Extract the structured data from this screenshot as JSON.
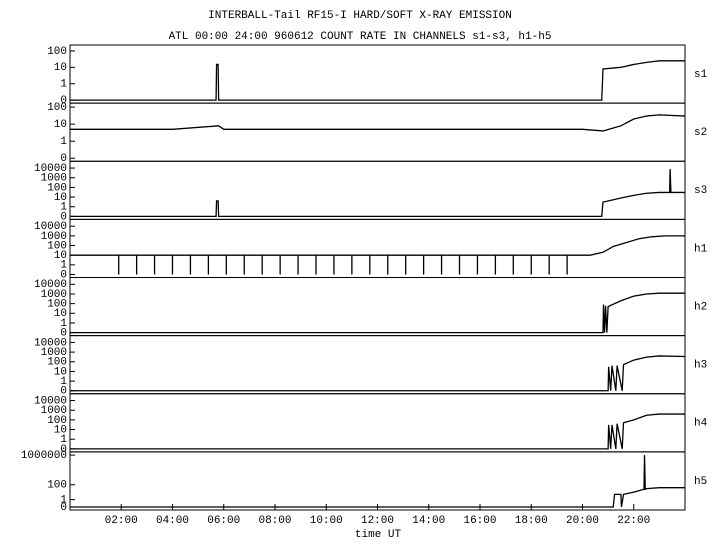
{
  "chart_data": {
    "type": "line",
    "title": "INTERBALL-Tail RF15-I HARD/SOFT X-RAY EMISSION",
    "subtitle": "ATL 00:00 24:00 960612  COUNT RATE IN CHANNELS s1-s3, h1-h5",
    "xlabel": "time UT",
    "xlim": [
      0,
      24
    ],
    "xticks": [
      {
        "value": 2,
        "label": "02:00"
      },
      {
        "value": 4,
        "label": "04:00"
      },
      {
        "value": 6,
        "label": "06:00"
      },
      {
        "value": 8,
        "label": "08:00"
      },
      {
        "value": 10,
        "label": "10:00"
      },
      {
        "value": 12,
        "label": "12:00"
      },
      {
        "value": 14,
        "label": "14:00"
      },
      {
        "value": 16,
        "label": "16:00"
      },
      {
        "value": 18,
        "label": "18:00"
      },
      {
        "value": 20,
        "label": "20:00"
      },
      {
        "value": 22,
        "label": "22:00"
      }
    ],
    "yscale": "symlog",
    "linthresh": 1,
    "color": "#000000",
    "series": [
      {
        "name": "s1",
        "ylim": [
          0,
          200
        ],
        "yticks": [
          0,
          1,
          10,
          100
        ],
        "x": [
          0,
          5.7,
          5.72,
          5.78,
          5.8,
          20.75,
          20.8,
          21.5,
          22,
          22.5,
          23,
          24
        ],
        "values": [
          0,
          0,
          15,
          15,
          0,
          0,
          8,
          10,
          15,
          20,
          25,
          25
        ]
      },
      {
        "name": "s2",
        "ylim": [
          0,
          150
        ],
        "yticks": [
          0,
          1,
          10,
          100
        ],
        "x": [
          0,
          2,
          4,
          5.8,
          6,
          8,
          10,
          12,
          14,
          16,
          18,
          20,
          20.8,
          21.5,
          22,
          22.5,
          23,
          24
        ],
        "values": [
          5,
          5,
          5,
          8,
          5,
          5,
          5,
          5,
          5,
          5,
          5,
          5,
          4,
          8,
          20,
          30,
          35,
          30
        ]
      },
      {
        "name": "s3",
        "ylim": [
          0,
          40000
        ],
        "yticks": [
          0,
          1,
          10,
          100,
          1000,
          10000
        ],
        "x": [
          0,
          5.7,
          5.72,
          5.78,
          5.8,
          20.75,
          20.8,
          21.5,
          22,
          22.5,
          23,
          23.4,
          23.42,
          23.45,
          24
        ],
        "values": [
          0,
          0,
          4,
          4,
          0,
          0,
          3,
          8,
          15,
          25,
          30,
          30,
          8000,
          30,
          30
        ]
      },
      {
        "name": "h1",
        "ylim": [
          0,
          40000
        ],
        "yticks": [
          0,
          1,
          10,
          100,
          1000,
          10000
        ],
        "x": [
          0,
          1.9,
          1.9,
          1.9,
          2.6,
          2.6,
          2.6,
          3.3,
          3.3,
          3.3,
          4.0,
          4.0,
          4.0,
          4.7,
          4.7,
          4.7,
          5.4,
          5.4,
          5.4,
          6.1,
          6.1,
          6.1,
          6.8,
          6.8,
          6.8,
          7.5,
          7.5,
          7.5,
          8.2,
          8.2,
          8.2,
          8.9,
          8.9,
          8.9,
          9.6,
          9.6,
          9.6,
          10.3,
          10.3,
          10.3,
          11.0,
          11.0,
          11.0,
          11.7,
          11.7,
          11.7,
          12.4,
          12.4,
          12.4,
          13.1,
          13.1,
          13.1,
          13.8,
          13.8,
          13.8,
          14.5,
          14.5,
          14.5,
          15.2,
          15.2,
          15.2,
          15.9,
          15.9,
          15.9,
          16.6,
          16.6,
          16.6,
          17.3,
          17.3,
          17.3,
          18.0,
          18.0,
          18.0,
          18.7,
          18.7,
          18.7,
          19.4,
          19.4,
          19.4,
          20.3,
          20.8,
          21.2,
          21.7,
          22.2,
          22.7,
          23.2,
          24
        ],
        "values": [
          10,
          10,
          0,
          10,
          10,
          0,
          10,
          10,
          0,
          10,
          10,
          0,
          10,
          10,
          0,
          10,
          10,
          0,
          10,
          10,
          0,
          10,
          10,
          0,
          10,
          10,
          0,
          10,
          10,
          0,
          10,
          10,
          0,
          10,
          10,
          0,
          10,
          10,
          0,
          10,
          10,
          0,
          10,
          10,
          0,
          10,
          10,
          0,
          10,
          10,
          0,
          10,
          10,
          0,
          10,
          10,
          0,
          10,
          10,
          0,
          10,
          10,
          0,
          10,
          10,
          0,
          10,
          10,
          0,
          10,
          10,
          0,
          10,
          10,
          0,
          10,
          10,
          0,
          10,
          10,
          20,
          80,
          200,
          500,
          800,
          1000,
          1000
        ]
      },
      {
        "name": "h2",
        "ylim": [
          0,
          40000
        ],
        "yticks": [
          0,
          1,
          10,
          100,
          1000,
          10000
        ],
        "x": [
          0,
          20.8,
          20.82,
          20.86,
          20.9,
          20.95,
          21,
          21.5,
          22,
          22.5,
          23,
          24
        ],
        "values": [
          0,
          0,
          80,
          0,
          60,
          0,
          50,
          200,
          600,
          1000,
          1200,
          1200
        ]
      },
      {
        "name": "h3",
        "ylim": [
          0,
          40000
        ],
        "yticks": [
          0,
          1,
          10,
          100,
          1000,
          10000
        ],
        "x": [
          0,
          21,
          21.02,
          21.1,
          21.15,
          21.3,
          21.35,
          21.55,
          21.6,
          22,
          22.5,
          23,
          24
        ],
        "values": [
          0,
          0,
          30,
          0,
          40,
          0,
          40,
          0,
          50,
          150,
          300,
          400,
          350
        ]
      },
      {
        "name": "h4",
        "ylim": [
          0,
          40000
        ],
        "yticks": [
          0,
          1,
          10,
          100,
          1000,
          10000
        ],
        "x": [
          0,
          21,
          21.02,
          21.1,
          21.15,
          21.3,
          21.35,
          21.55,
          21.6,
          22,
          22.5,
          23,
          24
        ],
        "values": [
          0,
          0,
          30,
          0,
          30,
          0,
          40,
          0,
          50,
          100,
          300,
          400,
          400
        ]
      },
      {
        "name": "h5",
        "ylim": [
          0,
          2000000
        ],
        "yticks": [
          0,
          1,
          100,
          1000000
        ],
        "x": [
          0,
          21.2,
          21.25,
          21.5,
          21.52,
          21.6,
          22,
          22.4,
          22.42,
          22.45,
          22.5,
          23,
          24
        ],
        "values": [
          0,
          0,
          5,
          5,
          0,
          5,
          10,
          25,
          1000000,
          25,
          30,
          40,
          40
        ]
      }
    ]
  }
}
